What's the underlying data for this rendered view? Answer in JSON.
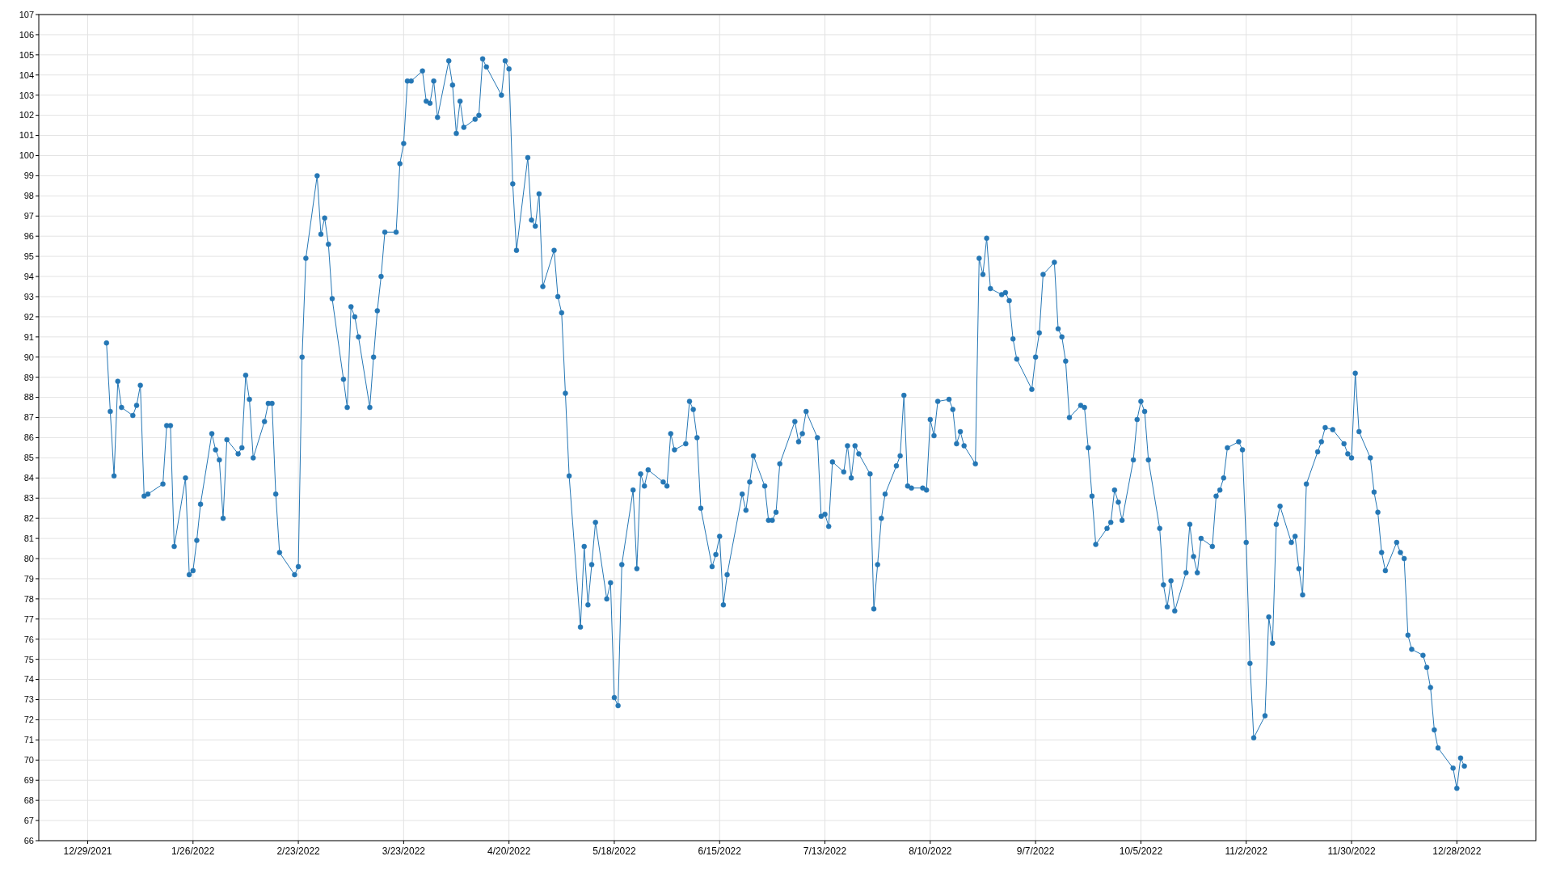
{
  "chart_data": {
    "type": "line",
    "grid": true,
    "marker": "circle",
    "line_style": "solid",
    "xlim": [
      "2021-12-16",
      "2023-01-18"
    ],
    "xticks": [
      {
        "value": "2021-12-29",
        "label": "12/29/2021"
      },
      {
        "value": "2022-01-26",
        "label": "1/26/2022"
      },
      {
        "value": "2022-02-23",
        "label": "2/23/2022"
      },
      {
        "value": "2022-03-23",
        "label": "3/23/2022"
      },
      {
        "value": "2022-04-20",
        "label": "4/20/2022"
      },
      {
        "value": "2022-05-18",
        "label": "5/18/2022"
      },
      {
        "value": "2022-06-15",
        "label": "6/15/2022"
      },
      {
        "value": "2022-07-13",
        "label": "7/13/2022"
      },
      {
        "value": "2022-08-10",
        "label": "8/10/2022"
      },
      {
        "value": "2022-09-07",
        "label": "9/7/2022"
      },
      {
        "value": "2022-10-05",
        "label": "10/5/2022"
      },
      {
        "value": "2022-11-02",
        "label": "11/2/2022"
      },
      {
        "value": "2022-11-30",
        "label": "11/30/2022"
      },
      {
        "value": "2022-12-28",
        "label": "12/28/2022"
      }
    ],
    "ylim": [
      66,
      107
    ],
    "yticks": [
      66,
      67,
      68,
      69,
      70,
      71,
      72,
      73,
      74,
      75,
      76,
      77,
      78,
      79,
      80,
      81,
      82,
      83,
      84,
      85,
      86,
      87,
      88,
      89,
      90,
      91,
      92,
      93,
      94,
      95,
      96,
      97,
      98,
      99,
      100,
      101,
      102,
      103,
      104,
      105,
      106,
      107
    ],
    "x": [
      "2022-01-03",
      "2022-01-04",
      "2022-01-05",
      "2022-01-06",
      "2022-01-07",
      "2022-01-10",
      "2022-01-11",
      "2022-01-12",
      "2022-01-13",
      "2022-01-14",
      "2022-01-18",
      "2022-01-19",
      "2022-01-20",
      "2022-01-21",
      "2022-01-24",
      "2022-01-25",
      "2022-01-26",
      "2022-01-27",
      "2022-01-28",
      "2022-01-31",
      "2022-02-01",
      "2022-02-02",
      "2022-02-03",
      "2022-02-04",
      "2022-02-07",
      "2022-02-08",
      "2022-02-09",
      "2022-02-10",
      "2022-02-11",
      "2022-02-14",
      "2022-02-15",
      "2022-02-16",
      "2022-02-17",
      "2022-02-18",
      "2022-02-22",
      "2022-02-23",
      "2022-02-24",
      "2022-02-25",
      "2022-02-28",
      "2022-03-01",
      "2022-03-02",
      "2022-03-03",
      "2022-03-04",
      "2022-03-07",
      "2022-03-08",
      "2022-03-09",
      "2022-03-10",
      "2022-03-11",
      "2022-03-14",
      "2022-03-15",
      "2022-03-16",
      "2022-03-17",
      "2022-03-18",
      "2022-03-21",
      "2022-03-22",
      "2022-03-23",
      "2022-03-24",
      "2022-03-25",
      "2022-03-28",
      "2022-03-29",
      "2022-03-30",
      "2022-03-31",
      "2022-04-01",
      "2022-04-04",
      "2022-04-05",
      "2022-04-06",
      "2022-04-07",
      "2022-04-08",
      "2022-04-11",
      "2022-04-12",
      "2022-04-13",
      "2022-04-14",
      "2022-04-18",
      "2022-04-19",
      "2022-04-20",
      "2022-04-21",
      "2022-04-22",
      "2022-04-25",
      "2022-04-26",
      "2022-04-27",
      "2022-04-28",
      "2022-04-29",
      "2022-05-02",
      "2022-05-03",
      "2022-05-04",
      "2022-05-05",
      "2022-05-06",
      "2022-05-09",
      "2022-05-10",
      "2022-05-11",
      "2022-05-12",
      "2022-05-13",
      "2022-05-16",
      "2022-05-17",
      "2022-05-18",
      "2022-05-19",
      "2022-05-20",
      "2022-05-23",
      "2022-05-24",
      "2022-05-25",
      "2022-05-26",
      "2022-05-27",
      "2022-05-31",
      "2022-06-01",
      "2022-06-02",
      "2022-06-03",
      "2022-06-06",
      "2022-06-07",
      "2022-06-08",
      "2022-06-09",
      "2022-06-10",
      "2022-06-13",
      "2022-06-14",
      "2022-06-15",
      "2022-06-16",
      "2022-06-17",
      "2022-06-21",
      "2022-06-22",
      "2022-06-23",
      "2022-06-24",
      "2022-06-27",
      "2022-06-28",
      "2022-06-29",
      "2022-06-30",
      "2022-07-01",
      "2022-07-05",
      "2022-07-06",
      "2022-07-07",
      "2022-07-08",
      "2022-07-11",
      "2022-07-12",
      "2022-07-13",
      "2022-07-14",
      "2022-07-15",
      "2022-07-18",
      "2022-07-19",
      "2022-07-20",
      "2022-07-21",
      "2022-07-22",
      "2022-07-25",
      "2022-07-26",
      "2022-07-27",
      "2022-07-28",
      "2022-07-29",
      "2022-08-01",
      "2022-08-02",
      "2022-08-03",
      "2022-08-04",
      "2022-08-05",
      "2022-08-08",
      "2022-08-09",
      "2022-08-10",
      "2022-08-11",
      "2022-08-12",
      "2022-08-15",
      "2022-08-16",
      "2022-08-17",
      "2022-08-18",
      "2022-08-19",
      "2022-08-22",
      "2022-08-23",
      "2022-08-24",
      "2022-08-25",
      "2022-08-26",
      "2022-08-29",
      "2022-08-30",
      "2022-08-31",
      "2022-09-01",
      "2022-09-02",
      "2022-09-06",
      "2022-09-07",
      "2022-09-08",
      "2022-09-09",
      "2022-09-12",
      "2022-09-13",
      "2022-09-14",
      "2022-09-15",
      "2022-09-16",
      "2022-09-19",
      "2022-09-20",
      "2022-09-21",
      "2022-09-22",
      "2022-09-23",
      "2022-09-26",
      "2022-09-27",
      "2022-09-28",
      "2022-09-29",
      "2022-09-30",
      "2022-10-03",
      "2022-10-04",
      "2022-10-05",
      "2022-10-06",
      "2022-10-07",
      "2022-10-10",
      "2022-10-11",
      "2022-10-12",
      "2022-10-13",
      "2022-10-14",
      "2022-10-17",
      "2022-10-18",
      "2022-10-19",
      "2022-10-20",
      "2022-10-21",
      "2022-10-24",
      "2022-10-25",
      "2022-10-26",
      "2022-10-27",
      "2022-10-28",
      "2022-10-31",
      "2022-11-01",
      "2022-11-02",
      "2022-11-03",
      "2022-11-04",
      "2022-11-07",
      "2022-11-08",
      "2022-11-09",
      "2022-11-10",
      "2022-11-11",
      "2022-11-14",
      "2022-11-15",
      "2022-11-16",
      "2022-11-17",
      "2022-11-18",
      "2022-11-21",
      "2022-11-22",
      "2022-11-23",
      "2022-11-25",
      "2022-11-28",
      "2022-11-29",
      "2022-11-30",
      "2022-12-01",
      "2022-12-02",
      "2022-12-05",
      "2022-12-06",
      "2022-12-07",
      "2022-12-08",
      "2022-12-09",
      "2022-12-12",
      "2022-12-13",
      "2022-12-14",
      "2022-12-15",
      "2022-12-16",
      "2022-12-19",
      "2022-12-20",
      "2022-12-21",
      "2022-12-22",
      "2022-12-23",
      "2022-12-27",
      "2022-12-28",
      "2022-12-29",
      "2022-12-30"
    ],
    "series": [
      {
        "color": "#2577b5",
        "values": [
          90.7,
          87.3,
          84.1,
          88.8,
          87.5,
          87.1,
          87.6,
          88.6,
          83.1,
          83.2,
          83.7,
          86.6,
          86.6,
          80.6,
          84.0,
          79.2,
          79.4,
          80.9,
          82.7,
          86.2,
          85.4,
          84.9,
          82.0,
          85.9,
          85.2,
          85.5,
          89.1,
          87.9,
          85.0,
          86.8,
          87.7,
          87.7,
          83.2,
          80.3,
          79.2,
          79.6,
          90.0,
          94.9,
          99.0,
          96.1,
          96.9,
          95.6,
          92.9,
          88.9,
          87.5,
          92.5,
          92.0,
          91.0,
          87.5,
          90.0,
          92.3,
          94.0,
          96.2,
          96.2,
          99.6,
          100.6,
          103.7,
          103.7,
          104.2,
          102.7,
          102.6,
          103.7,
          101.9,
          104.7,
          103.5,
          101.1,
          102.7,
          101.4,
          101.8,
          102.0,
          104.8,
          104.4,
          103.0,
          104.7,
          104.3,
          98.6,
          95.3,
          99.9,
          96.8,
          96.5,
          98.1,
          93.5,
          95.3,
          93.0,
          92.2,
          88.2,
          84.1,
          76.6,
          80.6,
          77.7,
          79.7,
          81.8,
          78.0,
          78.8,
          73.1,
          72.7,
          79.7,
          83.4,
          79.5,
          84.2,
          83.6,
          84.4,
          83.8,
          83.6,
          86.2,
          85.4,
          85.7,
          87.8,
          87.4,
          86.0,
          82.5,
          79.6,
          80.2,
          81.1,
          77.7,
          79.2,
          83.2,
          82.4,
          83.8,
          85.1,
          83.6,
          81.9,
          81.9,
          82.3,
          84.7,
          86.8,
          85.8,
          86.2,
          87.3,
          86.0,
          82.1,
          82.2,
          81.6,
          84.8,
          84.3,
          85.6,
          84.0,
          85.6,
          85.2,
          84.2,
          77.5,
          79.7,
          82.0,
          83.2,
          84.6,
          85.1,
          88.1,
          83.6,
          83.5,
          83.5,
          83.4,
          86.9,
          86.1,
          87.8,
          87.9,
          87.4,
          85.7,
          86.3,
          85.6,
          84.7,
          94.9,
          94.1,
          95.9,
          93.4,
          93.1,
          93.2,
          92.8,
          90.9,
          89.9,
          88.4,
          90.0,
          91.2,
          94.1,
          94.7,
          91.4,
          91.0,
          89.8,
          87.0,
          87.6,
          87.5,
          85.5,
          83.1,
          80.7,
          81.5,
          81.8,
          83.4,
          82.8,
          81.9,
          84.9,
          86.9,
          87.8,
          87.3,
          84.9,
          81.5,
          78.7,
          77.6,
          78.9,
          77.4,
          79.3,
          81.7,
          80.1,
          79.3,
          81.0,
          80.6,
          83.1,
          83.4,
          84.0,
          85.5,
          85.8,
          85.4,
          80.8,
          74.8,
          71.1,
          72.2,
          77.1,
          75.8,
          81.7,
          82.6,
          80.8,
          81.1,
          79.5,
          78.2,
          83.7,
          85.3,
          85.8,
          86.5,
          86.4,
          85.7,
          85.2,
          85.0,
          89.2,
          86.3,
          85.0,
          83.3,
          82.3,
          80.3,
          79.4,
          80.8,
          80.3,
          80.0,
          76.2,
          75.5,
          75.2,
          74.6,
          73.6,
          71.5,
          70.6,
          69.6,
          68.6,
          70.1,
          69.7
        ]
      }
    ]
  }
}
